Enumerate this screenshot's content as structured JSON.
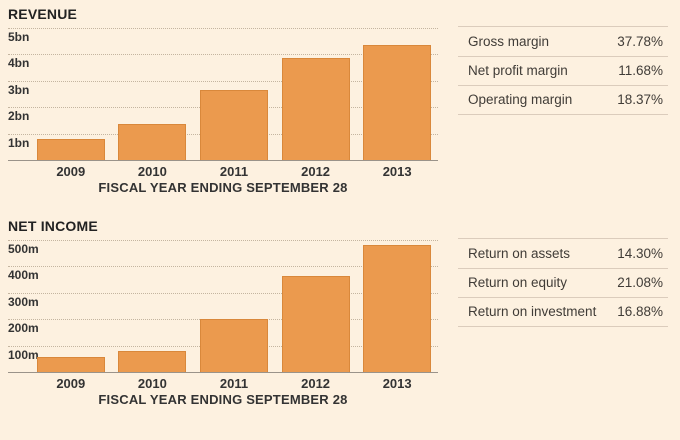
{
  "chart_data": [
    {
      "type": "bar",
      "title": "REVENUE",
      "categories": [
        "2009",
        "2010",
        "2011",
        "2012",
        "2013"
      ],
      "values": [
        0.79,
        1.36,
        2.65,
        3.86,
        4.36
      ],
      "value_unit": "bn",
      "xlabel": "FISCAL YEAR ENDING SEPTEMBER 28",
      "ylabel": "",
      "ylim": [
        0,
        5
      ],
      "y_ticks": [
        {
          "value": 5,
          "label": "5bn"
        },
        {
          "value": 4,
          "label": "4bn"
        },
        {
          "value": 3,
          "label": "3bn"
        },
        {
          "value": 2,
          "label": "2bn"
        },
        {
          "value": 1,
          "label": "1bn"
        }
      ],
      "grid": "horizontal-dotted",
      "legend": "none"
    },
    {
      "type": "bar",
      "title": "NET INCOME",
      "categories": [
        "2009",
        "2010",
        "2011",
        "2012",
        "2013"
      ],
      "values": [
        56,
        80,
        200,
        363,
        483
      ],
      "value_unit": "m",
      "xlabel": "FISCAL YEAR ENDING SEPTEMBER 28",
      "ylabel": "",
      "ylim": [
        0,
        500
      ],
      "y_ticks": [
        {
          "value": 500,
          "label": "500m"
        },
        {
          "value": 400,
          "label": "400m"
        },
        {
          "value": 300,
          "label": "300m"
        },
        {
          "value": 200,
          "label": "200m"
        },
        {
          "value": 100,
          "label": "100m"
        }
      ],
      "grid": "horizontal-dotted",
      "legend": "none"
    }
  ],
  "metric_tables": [
    {
      "rows": [
        {
          "label": "Gross margin",
          "value": "37.78%"
        },
        {
          "label": "Net profit margin",
          "value": "11.68%"
        },
        {
          "label": "Operating margin",
          "value": "18.37%"
        }
      ]
    },
    {
      "rows": [
        {
          "label": "Return on assets",
          "value": "14.30%"
        },
        {
          "label": "Return on equity",
          "value": "21.08%"
        },
        {
          "label": "Return on investment",
          "value": "16.88%"
        }
      ]
    }
  ],
  "colors": {
    "background": "#fdf1e0",
    "bar_fill": "#eb9a4e",
    "bar_border": "#d9883b",
    "gridline": "#c4b5a0",
    "axis_line": "#9a938a",
    "separator": "#dbccbc",
    "title_text": "#222222",
    "label_text": "#333333",
    "table_text": "#403c37"
  }
}
